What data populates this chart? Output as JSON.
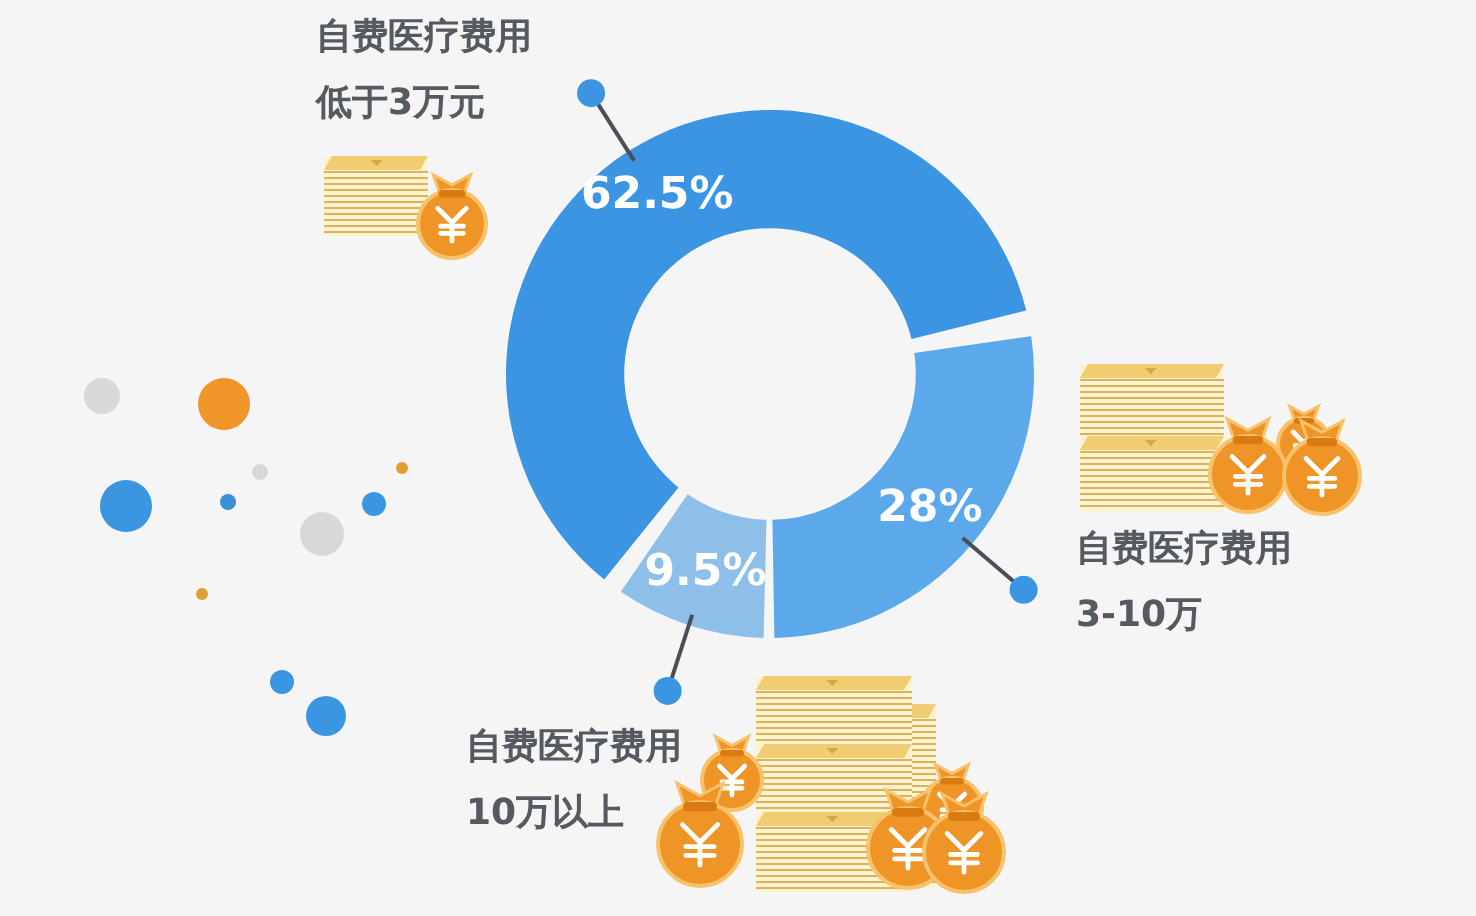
{
  "chart_data": {
    "type": "donut",
    "categories": [
      "自费医疗费用低于3万元",
      "自费医疗费用3-10万",
      "自费医疗费用10万以上"
    ],
    "values": [
      62.5,
      28,
      9.5
    ],
    "colors": [
      "#3b95e2",
      "#5ba9ea",
      "#8dbfe9"
    ],
    "value_labels": [
      "62.5%",
      "28%",
      "9.5%"
    ]
  }
}
